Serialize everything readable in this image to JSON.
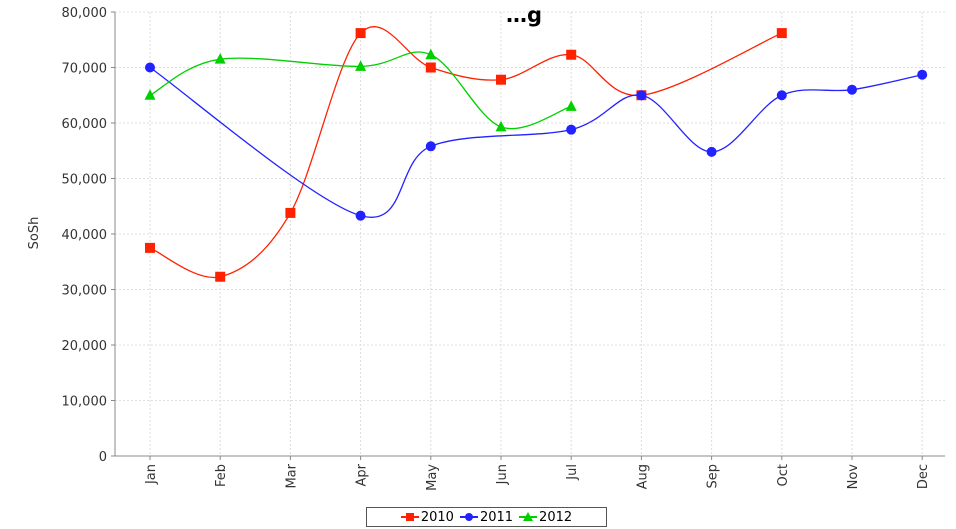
{
  "chart_data": {
    "type": "line",
    "title": "…g",
    "xlabel": "",
    "ylabel": "SoSh",
    "categories": [
      "Jan",
      "Feb",
      "Mar",
      "Apr",
      "May",
      "Jun",
      "Jul",
      "Aug",
      "Sep",
      "Oct",
      "Nov",
      "Dec"
    ],
    "ylim": [
      0,
      80000
    ],
    "yticks": [
      0,
      10000,
      20000,
      30000,
      40000,
      50000,
      60000,
      70000,
      80000
    ],
    "ytick_labels": [
      "0",
      "10,000",
      "20,000",
      "30,000",
      "40,000",
      "50,000",
      "60,000",
      "70,000",
      "80,000"
    ],
    "grid": true,
    "legend_position": "bottom-center",
    "series": [
      {
        "name": "2010",
        "color": "#ff2200",
        "marker": "square",
        "values": [
          37500,
          32300,
          43800,
          76200,
          70000,
          67800,
          72300,
          65000,
          null,
          76200,
          null,
          null
        ]
      },
      {
        "name": "2011",
        "color": "#2222ff",
        "marker": "circle",
        "values": [
          70000,
          null,
          null,
          43300,
          55800,
          null,
          58800,
          65000,
          54800,
          65000,
          66000,
          68700
        ]
      },
      {
        "name": "2012",
        "color": "#00d000",
        "marker": "triangle",
        "values": [
          65000,
          71500,
          null,
          70200,
          72300,
          59300,
          63000,
          null,
          null,
          null,
          null,
          null
        ]
      }
    ]
  }
}
